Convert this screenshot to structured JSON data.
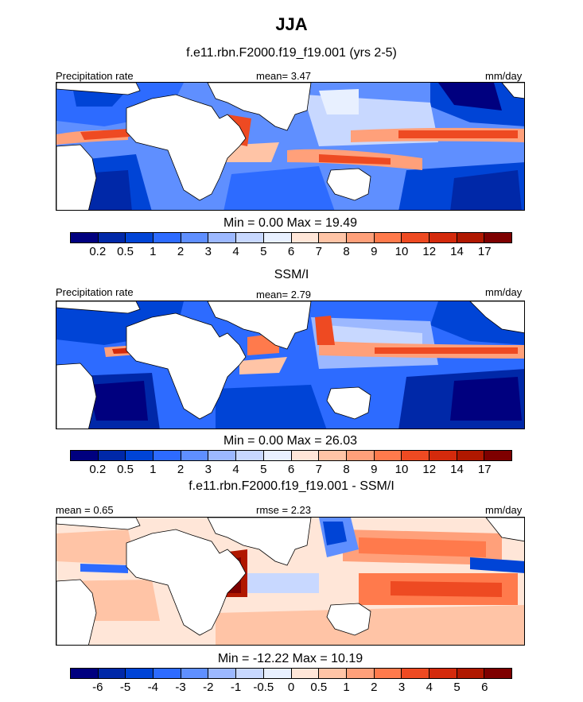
{
  "page": {
    "title": "JJA",
    "subtitle": "f.e11.rbn.F2000.f19_f19.001 (yrs 2-5)"
  },
  "panels": [
    {
      "left_label": "Precipitation rate",
      "center_label": "mean=   3.47",
      "right_label": "mm/day",
      "minmax": "Min =   0.00 Max =  19.49",
      "palette": "precip"
    },
    {
      "heading": "SSM/I",
      "left_label": "Precipitation rate",
      "center_label": "mean=   2.79",
      "right_label": "mm/day",
      "minmax": "Min =   0.00 Max =  26.03",
      "palette": "precip"
    },
    {
      "heading": "f.e11.rbn.F2000.f19_f19.001 - SSM/I",
      "left_label": "mean =   0.65",
      "center_label": "rmse =   2.23",
      "right_label": "mm/day",
      "minmax": "Min = -12.22 Max =  10.19",
      "palette": "diff"
    }
  ],
  "colorbars": {
    "precip": {
      "colors": [
        "#00007f",
        "#0028a8",
        "#0044d6",
        "#2d6bff",
        "#5f8fff",
        "#9cb8ff",
        "#c8d8ff",
        "#e8f0ff",
        "#ffe6d8",
        "#ffc4a6",
        "#ffa07a",
        "#ff7a4c",
        "#ee4a22",
        "#d42a0c",
        "#b01800",
        "#7e0000"
      ],
      "labels": [
        "0.2",
        "0.5",
        "1",
        "2",
        "3",
        "4",
        "5",
        "6",
        "7",
        "8",
        "9",
        "10",
        "12",
        "14",
        "17"
      ]
    },
    "diff": {
      "colors": [
        "#00007f",
        "#0028a8",
        "#0044d6",
        "#2d6bff",
        "#5f8fff",
        "#9cb8ff",
        "#c8d8ff",
        "#e8f0ff",
        "#ffe6d8",
        "#ffc4a6",
        "#ffa07a",
        "#ff7a4c",
        "#ee4a22",
        "#d42a0c",
        "#b01800",
        "#7e0000"
      ],
      "labels": [
        "-6",
        "-5",
        "-4",
        "-3",
        "-2",
        "-1",
        "-0.5",
        "0",
        "0.5",
        "1",
        "2",
        "3",
        "4",
        "5",
        "6"
      ]
    }
  }
}
